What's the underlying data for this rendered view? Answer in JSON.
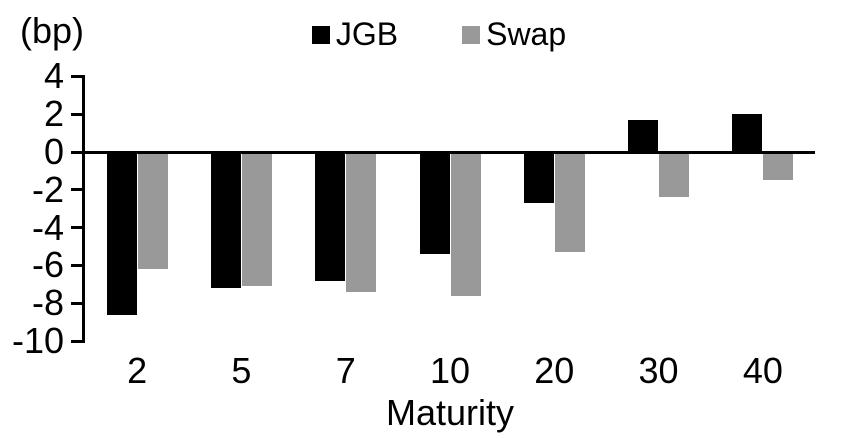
{
  "chart_data": {
    "type": "bar",
    "title": "",
    "ylabel": "(bp)",
    "xlabel": "Maturity",
    "categories": [
      "2",
      "5",
      "7",
      "10",
      "20",
      "30",
      "40"
    ],
    "series": [
      {
        "name": "JGB",
        "color": "#000000",
        "values": [
          -8.6,
          -7.2,
          -6.8,
          -5.4,
          -2.7,
          1.7,
          2.0
        ]
      },
      {
        "name": "Swap",
        "color": "#999999",
        "values": [
          -6.2,
          -7.1,
          -7.4,
          -7.6,
          -5.3,
          -2.4,
          -1.5
        ]
      }
    ],
    "yticks": [
      4,
      2,
      0,
      -2,
      -4,
      -6,
      -8,
      -10
    ],
    "ylim": [
      -10,
      4
    ],
    "legend_position": "top",
    "grid": false,
    "axis_color": "#000000",
    "background_color": "#ffffff"
  }
}
